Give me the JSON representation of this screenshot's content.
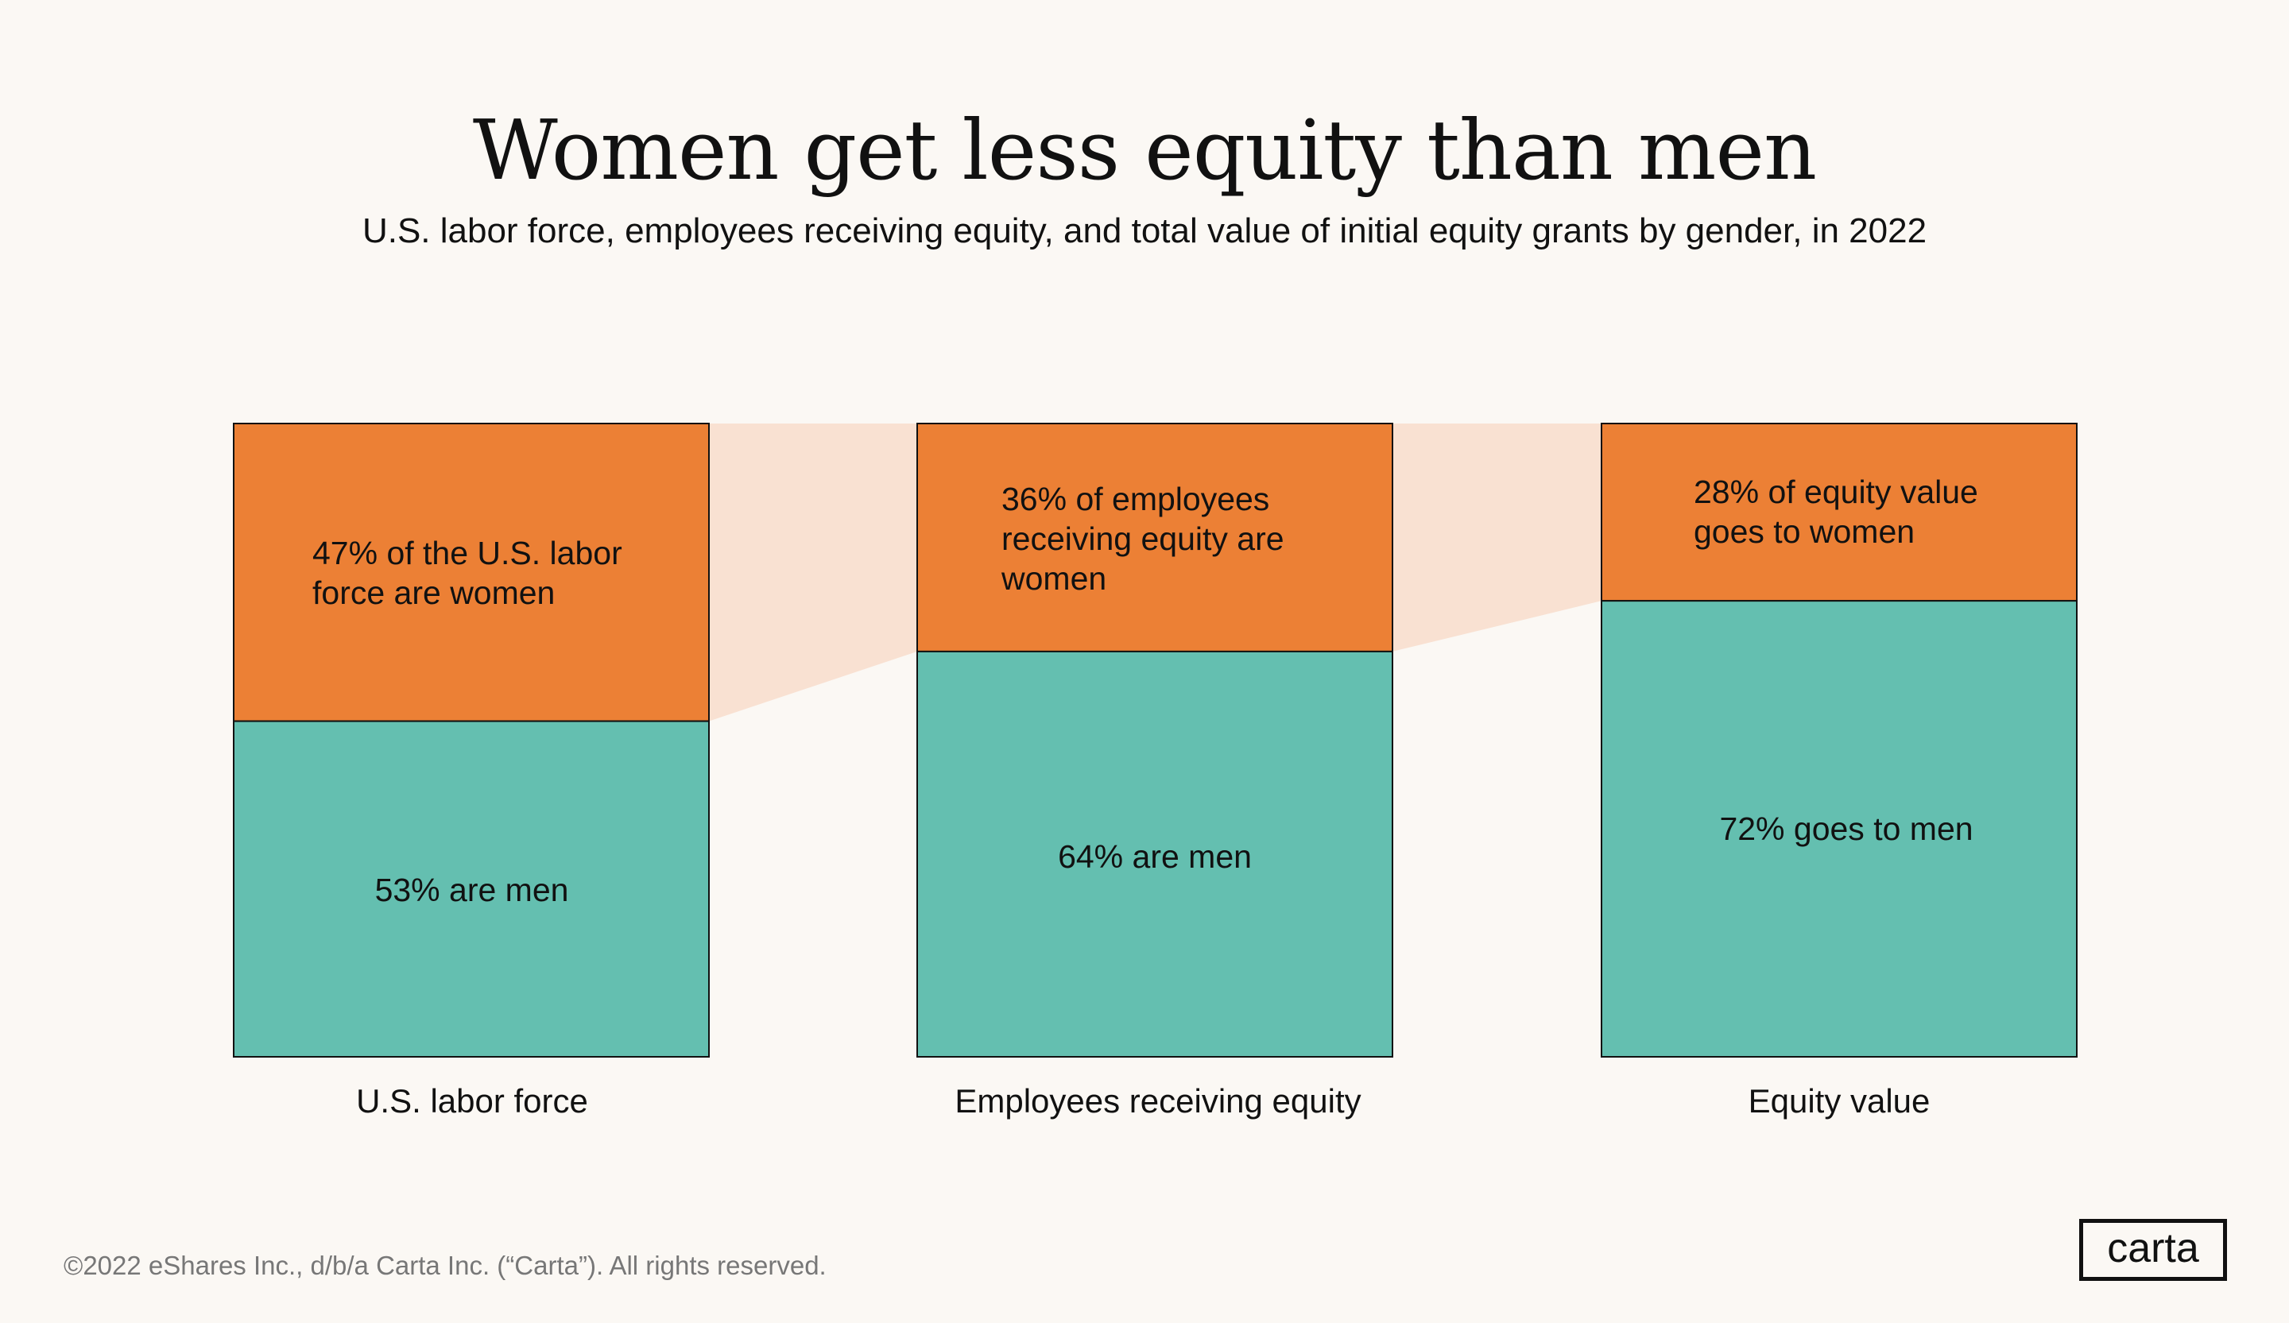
{
  "chart_data": {
    "type": "bar",
    "stacked": true,
    "title": "Women get less equity than men",
    "subtitle": "U.S. labor force, employees receiving equity, and  total value of initial equity grants by gender, in 2022",
    "categories": [
      "U.S. labor force",
      "Employees receiving equity",
      "Equity value"
    ],
    "series": [
      {
        "key": "women",
        "values": [
          47,
          36,
          28
        ],
        "labels": [
          "47% of the U.S. labor\nforce are women",
          "36% of employees\nreceiving equity are\nwomen",
          "28% of equity value\ngoes to women"
        ]
      },
      {
        "key": "men",
        "values": [
          53,
          64,
          72
        ],
        "labels": [
          "53% are men",
          "64% are men",
          "72% goes to men"
        ]
      }
    ],
    "ylim": [
      0,
      100
    ],
    "grid": false,
    "colors": {
      "women": "#ec8035",
      "men": "#64bfb0",
      "connector": "#f9e1d2",
      "background": "#fbf8f4"
    }
  },
  "footer": "©2022 eShares Inc., d/b/a Carta Inc. (“Carta”). All rights reserved.",
  "logo": "carta"
}
